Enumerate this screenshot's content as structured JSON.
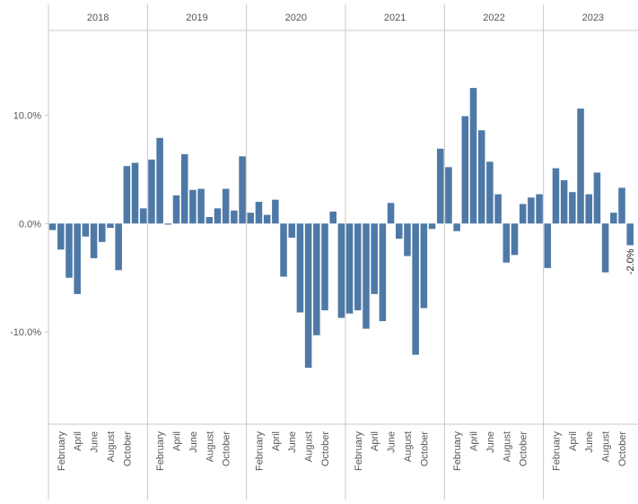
{
  "chart_data": {
    "type": "bar",
    "title": "",
    "xlabel": "",
    "ylabel": "",
    "ylim": [
      -18.5,
      17.8
    ],
    "y_ticks": [
      10,
      0,
      -10
    ],
    "y_tick_labels": [
      "10.0%",
      "0.0%",
      "-10.0%"
    ],
    "grid": false,
    "bar_color": "#4e79a7",
    "x_month_labels": [
      "February",
      "April",
      "June",
      "August",
      "October"
    ],
    "years": [
      {
        "label": "2018",
        "values": [
          -0.6,
          -2.4,
          -5.0,
          -6.5,
          -1.2,
          -3.2,
          -1.7,
          -0.4,
          -4.3,
          5.3,
          5.6,
          1.4
        ]
      },
      {
        "label": "2019",
        "values": [
          5.9,
          7.9,
          -0.1,
          2.6,
          6.4,
          3.1,
          3.2,
          0.6,
          1.4,
          3.2,
          1.2,
          6.2
        ]
      },
      {
        "label": "2020",
        "values": [
          1.0,
          2.0,
          0.8,
          2.2,
          -4.9,
          -1.3,
          -8.2,
          -13.3,
          -10.3,
          -8.0,
          1.1,
          -8.7
        ]
      },
      {
        "label": "2021",
        "values": [
          -8.3,
          -8.0,
          -9.7,
          -6.5,
          -9.0,
          1.9,
          -1.4,
          -3.0,
          -12.1,
          -7.8,
          -0.5,
          6.9
        ]
      },
      {
        "label": "2022",
        "values": [
          5.2,
          -0.7,
          9.9,
          12.5,
          8.6,
          5.7,
          2.7,
          -3.6,
          -2.9,
          1.8,
          2.4,
          2.7
        ]
      },
      {
        "label": "2023",
        "values": [
          -4.1,
          5.1,
          4.0,
          2.9,
          10.6,
          2.7,
          4.7,
          -4.5,
          1.0,
          3.3,
          -2.0
        ]
      }
    ],
    "annotations": [
      {
        "year": "2023",
        "month_index": 10,
        "text": "-2.0%"
      }
    ]
  }
}
